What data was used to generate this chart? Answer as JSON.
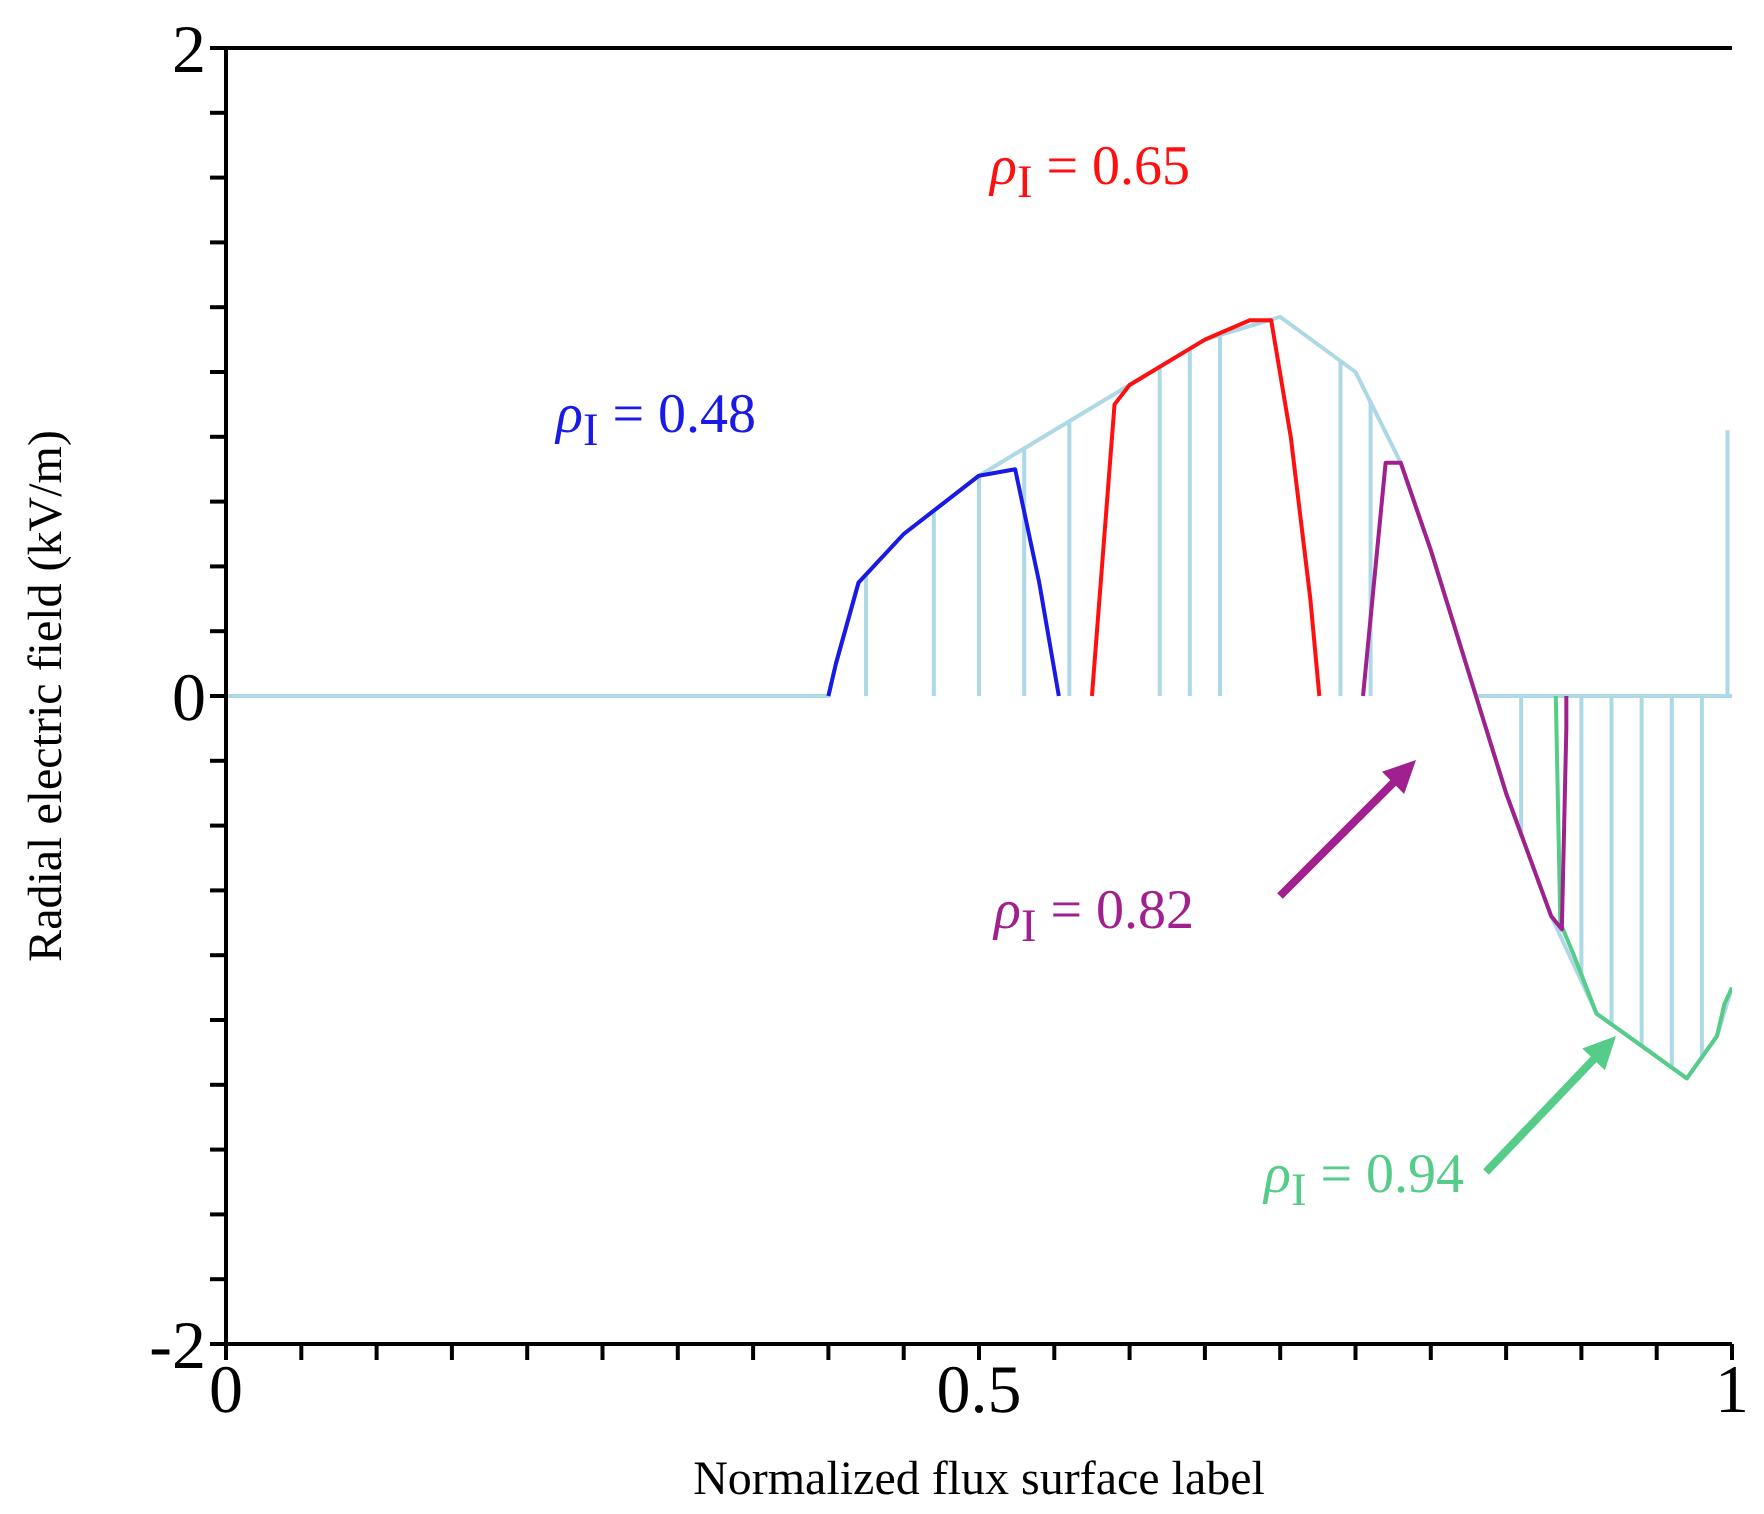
{
  "chart_data": {
    "type": "line",
    "xlabel": "Normalized flux surface label",
    "ylabel": "Radial electric field (kV/m)",
    "xlim": [
      0,
      1
    ],
    "ylim": [
      -2,
      2
    ],
    "xticks": [
      0,
      {
        "value": 0.05,
        "label": null
      },
      {
        "value": 0.1,
        "label": null
      },
      {
        "value": 0.15,
        "label": null
      },
      {
        "value": 0.2,
        "label": null
      },
      {
        "value": 0.25,
        "label": null
      },
      {
        "value": 0.3,
        "label": null
      },
      {
        "value": 0.35,
        "label": null
      },
      {
        "value": 0.4,
        "label": null
      },
      {
        "value": 0.45,
        "label": null
      },
      0.5,
      {
        "value": 0.55,
        "label": null
      },
      {
        "value": 0.6,
        "label": null
      },
      {
        "value": 0.65,
        "label": null
      },
      {
        "value": 0.7,
        "label": null
      },
      {
        "value": 0.75,
        "label": null
      },
      {
        "value": 0.8,
        "label": null
      },
      {
        "value": 0.85,
        "label": null
      },
      {
        "value": 0.9,
        "label": null
      },
      {
        "value": 0.95,
        "label": null
      },
      1
    ],
    "yticks": [
      -2,
      {
        "value": -1.8,
        "label": null
      },
      {
        "value": -1.6,
        "label": null
      },
      {
        "value": -1.4,
        "label": null
      },
      {
        "value": -1.2,
        "label": null
      },
      {
        "value": -1,
        "label": null
      },
      {
        "value": -0.8,
        "label": null
      },
      {
        "value": -0.6,
        "label": null
      },
      {
        "value": -0.4,
        "label": null
      },
      {
        "value": -0.2,
        "label": null
      },
      0,
      {
        "value": 0.2,
        "label": null
      },
      {
        "value": 0.4,
        "label": null
      },
      {
        "value": 0.6,
        "label": null
      },
      {
        "value": 0.8,
        "label": null
      },
      {
        "value": 1,
        "label": null
      },
      {
        "value": 1.2,
        "label": null
      },
      {
        "value": 1.4,
        "label": null
      },
      {
        "value": 1.6,
        "label": null
      },
      {
        "value": 1.8,
        "label": null
      },
      2
    ],
    "annotations": [
      "ρ$_{I}$ = 0.48",
      "ρ$_{I}$ = 0.65",
      "ρ$_{I}$ = 0.82",
      "ρ$_{I}$ = 0.94"
    ],
    "series": [
      {
        "color": "#1a1ae6",
        "x": [
          0.4,
          0.405,
          0.42,
          0.45,
          0.5,
          0.524,
          0.54,
          0.553
        ],
        "values": [
          0,
          0.1,
          0.35,
          0.5,
          0.68,
          0.7,
          0.35,
          0
        ]
      },
      {
        "color": "#ff1010",
        "x": [
          0.575,
          0.59,
          0.6,
          0.65,
          0.68,
          0.694,
          0.707,
          0.72,
          0.726
        ],
        "values": [
          0,
          0.9,
          0.96,
          1.1,
          1.16,
          1.16,
          0.8,
          0.3,
          0
        ]
      },
      {
        "color": "#a0208f",
        "x": [
          0.755,
          0.77,
          0.78,
          0.8,
          0.83,
          0.85,
          0.88,
          0.887,
          0.89,
          0.89
        ],
        "values": [
          0,
          0.72,
          0.72,
          0.45,
          0,
          -0.3,
          -0.68,
          -0.72,
          -0.1,
          0
        ]
      },
      {
        "color": "#55cc88",
        "x": [
          0.883,
          0.886,
          0.895,
          0.91,
          0.94,
          0.97,
          0.99,
          0.995,
          1.0
        ],
        "values": [
          0,
          -0.7,
          -0.8,
          -0.98,
          -1.08,
          -1.18,
          -1.05,
          -0.95,
          -0.9
        ]
      },
      {
        "color": "#add8e6",
        "x": [
          0,
          0.4,
          0.405,
          0.42,
          0.45,
          0.5,
          0.55,
          0.6,
          0.65,
          0.7,
          0.75,
          0.78,
          0.8,
          0.83,
          0.85,
          0.88,
          0.91,
          0.94,
          0.97,
          0.99,
          1.0
        ],
        "values": [
          0,
          0,
          0.1,
          0.35,
          0.5,
          0.68,
          0.82,
          0.96,
          1.1,
          1.17,
          1.0,
          0.72,
          0.45,
          0,
          -0.3,
          -0.68,
          -0.98,
          -1.08,
          -1.18,
          -1.05,
          -0.9
        ]
      },
      {
        "color": "#add8e6",
        "x": [
          0.83,
          1
        ],
        "values": [
          0,
          0
        ]
      },
      {
        "color": "#add8e6",
        "x": [
          0.425,
          0.425
        ],
        "values": [
          0,
          0.37
        ]
      },
      {
        "color": "#add8e6",
        "x": [
          0.47,
          0.47
        ],
        "values": [
          0,
          0.57
        ]
      },
      {
        "color": "#add8e6",
        "x": [
          0.5,
          0.5
        ],
        "values": [
          0,
          0.68
        ]
      },
      {
        "color": "#add8e6",
        "x": [
          0.53,
          0.53
        ],
        "values": [
          0,
          0.76
        ]
      },
      {
        "color": "#add8e6",
        "x": [
          0.56,
          0.56
        ],
        "values": [
          0,
          0.85
        ]
      },
      {
        "color": "#add8e6",
        "x": [
          0.62,
          0.62
        ],
        "values": [
          0,
          1.02
        ]
      },
      {
        "color": "#add8e6",
        "x": [
          0.64,
          0.64
        ],
        "values": [
          0,
          1.07
        ]
      },
      {
        "color": "#add8e6",
        "x": [
          0.66,
          0.66
        ],
        "values": [
          0,
          1.11
        ]
      },
      {
        "color": "#add8e6",
        "x": [
          0.74,
          0.74
        ],
        "values": [
          0,
          1.03
        ]
      },
      {
        "color": "#add8e6",
        "x": [
          0.76,
          0.76
        ],
        "values": [
          0,
          0.91
        ]
      },
      {
        "color": "#add8e6",
        "x": [
          0.86,
          0.86
        ],
        "values": [
          0,
          -0.43
        ]
      },
      {
        "color": "#add8e6",
        "x": [
          0.9,
          0.9
        ],
        "values": [
          0,
          -0.88
        ]
      },
      {
        "color": "#add8e6",
        "x": [
          0.92,
          0.92
        ],
        "values": [
          0,
          -1.01
        ]
      },
      {
        "color": "#add8e6",
        "x": [
          0.94,
          0.94
        ],
        "values": [
          0,
          -1.08
        ]
      },
      {
        "color": "#add8e6",
        "x": [
          0.96,
          0.96
        ],
        "values": [
          0,
          -1.15
        ]
      },
      {
        "color": "#add8e6",
        "x": [
          0.98,
          0.98
        ],
        "values": [
          0,
          -1.12
        ]
      },
      {
        "color": "#add8e6",
        "x": [
          0.997,
          0.997
        ],
        "values": [
          0,
          0.82
        ]
      }
    ]
  }
}
